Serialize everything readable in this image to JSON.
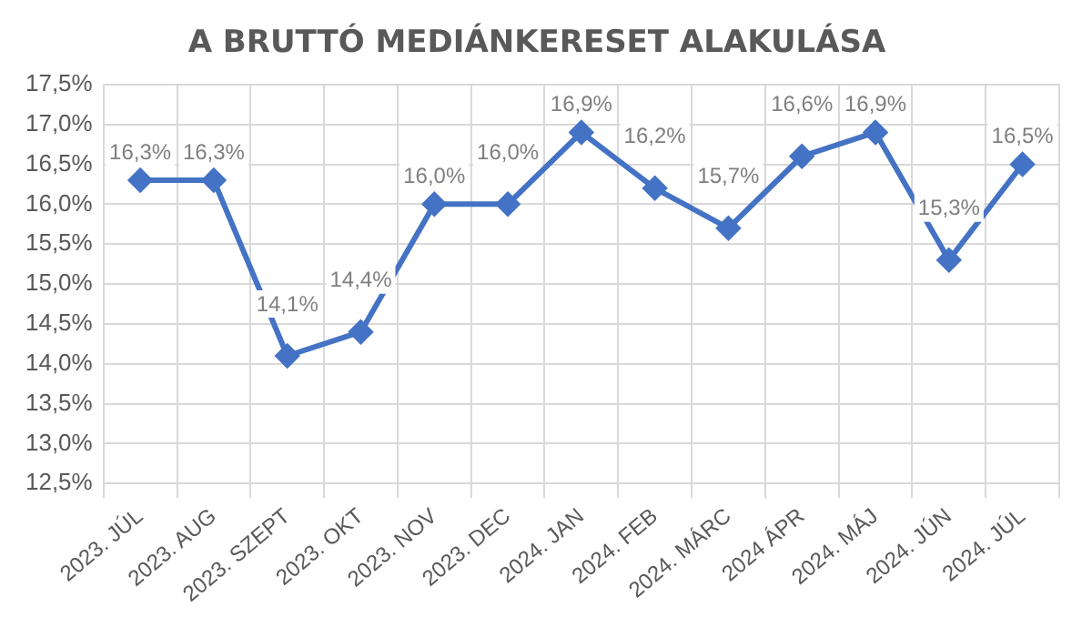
{
  "chart_data": {
    "type": "line",
    "title": "A BRUTTÓ MEDIÁNKERESET ALAKULÁSA",
    "categories": [
      "2023. JÚL",
      "2023. AUG",
      "2023. SZEPT",
      "2023. OKT",
      "2023. NOV",
      "2023. DEC",
      "2024. JAN",
      "2024. FEB",
      "2024. MÁRC",
      "2024 ÁPR",
      "2024. MÁJ",
      "2024. JÚN",
      "2024. JÚL"
    ],
    "values": [
      16.3,
      16.3,
      14.1,
      14.4,
      16.0,
      16.0,
      16.9,
      16.2,
      15.7,
      16.6,
      16.9,
      15.3,
      16.5
    ],
    "value_labels": [
      "16,3%",
      "16,3%",
      "14,1%",
      "14,4%",
      "16,0%",
      "16,0%",
      "16,9%",
      "16,2%",
      "15,7%",
      "16,6%",
      "16,9%",
      "15,3%",
      "16,5%"
    ],
    "color": "#4472c4",
    "marker": "diamond",
    "line_style": "solid",
    "grid": true,
    "legend": false,
    "ylim": [
      12.5,
      17.5
    ],
    "yticks": [
      {
        "value": 12.5,
        "label": "12,5%"
      },
      {
        "value": 13,
        "label": "13,0%"
      },
      {
        "value": 13.5,
        "label": "13,5%"
      },
      {
        "value": 14,
        "label": "14,0%"
      },
      {
        "value": 14.5,
        "label": "14,5%"
      },
      {
        "value": 15,
        "label": "15,0%"
      },
      {
        "value": 15.5,
        "label": "15,5%"
      },
      {
        "value": 16,
        "label": "16,0%"
      },
      {
        "value": 16.5,
        "label": "16,5%"
      },
      {
        "value": 17,
        "label": "17,0%"
      },
      {
        "value": 17.5,
        "label": "17,5%"
      }
    ]
  }
}
